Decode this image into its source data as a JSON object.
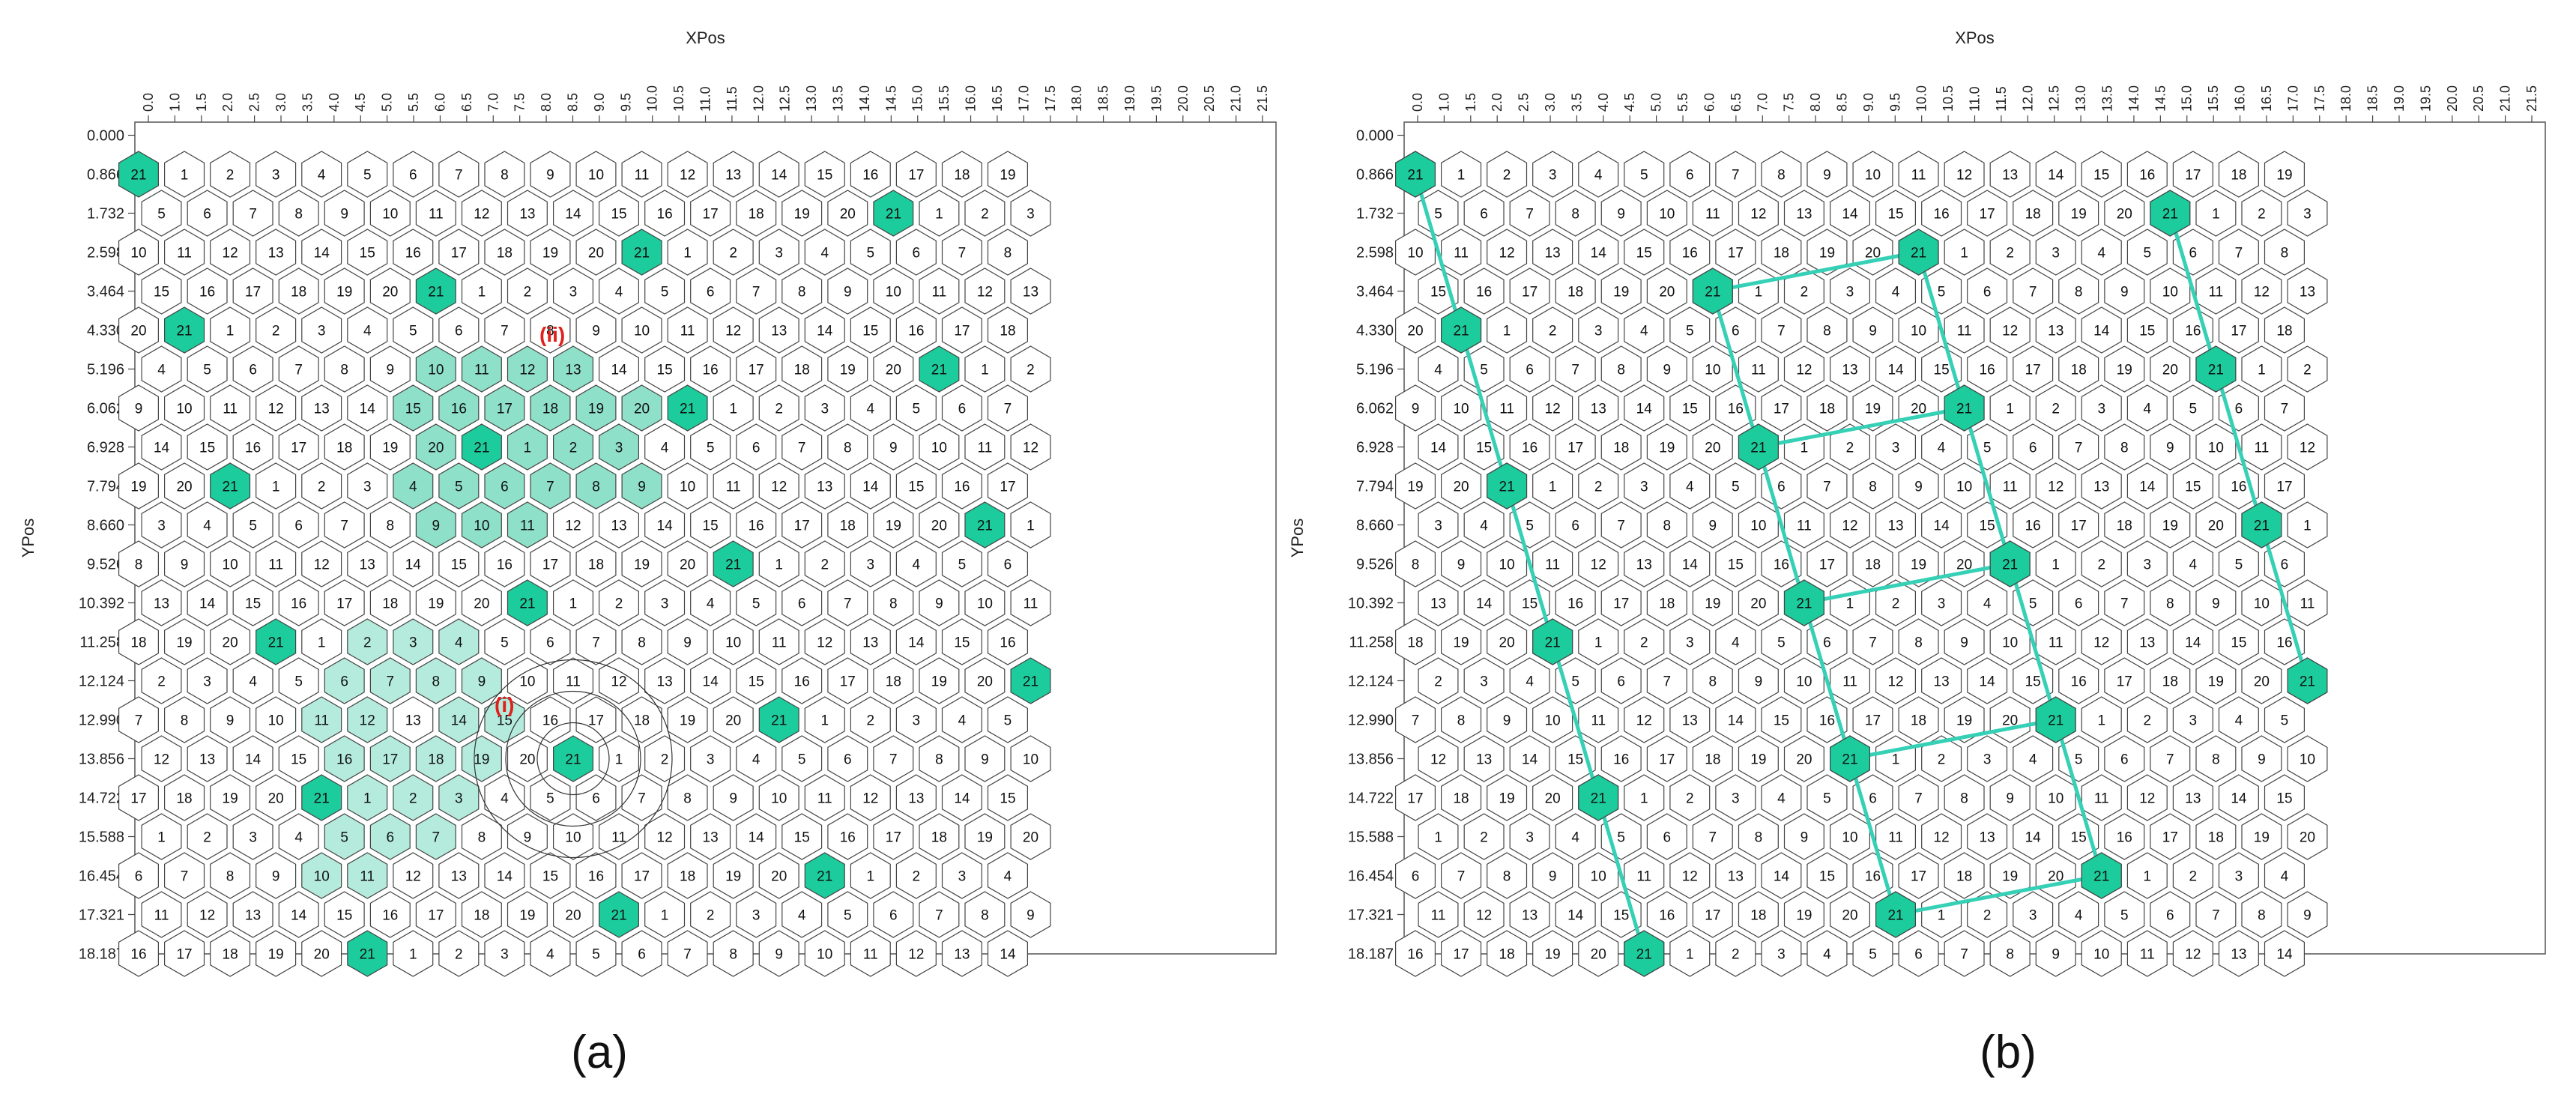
{
  "panels": [
    {
      "id": "a",
      "caption": "(a)",
      "x_axis_label": "XPos",
      "y_axis_label": "YPos",
      "annotations": [
        "(i)",
        "(ii)"
      ]
    },
    {
      "id": "b",
      "caption": "(b)",
      "x_axis_label": "XPos",
      "y_axis_label": "YPos",
      "annotations": []
    }
  ],
  "x_ticks": [
    "0.0",
    "1.0",
    "1.5",
    "2.0",
    "2.5",
    "3.0",
    "3.5",
    "4.0",
    "4.5",
    "5.0",
    "5.5",
    "6.0",
    "6.5",
    "7.0",
    "7.5",
    "8.0",
    "8.5",
    "9.0",
    "9.5",
    "10.0",
    "10.5",
    "11.0",
    "11.5",
    "12.0",
    "12.5",
    "13.0",
    "13.5",
    "14.0",
    "14.5",
    "15.0",
    "15.5",
    "16.0",
    "16.5",
    "17.0",
    "17.5",
    "18.0",
    "18.5",
    "19.0",
    "19.5",
    "20.0",
    "20.5",
    "21.0",
    "21.5"
  ],
  "y_ticks": [
    "0.000",
    "0.866",
    "1.732",
    "2.598",
    "3.464",
    "4.330",
    "5.196",
    "6.062",
    "6.928",
    "7.794",
    "8.660",
    "9.526",
    "10.392",
    "11.258",
    "12.124",
    "12.990",
    "13.856",
    "14.722",
    "15.588",
    "16.454",
    "17.321",
    "18.187"
  ],
  "grid": {
    "rows": 21,
    "columns": 20,
    "max_label": 21
  },
  "colors": {
    "highlight_cell": "#1ccc9c",
    "neighborhood_fill": "#b5ebdc",
    "neighborhood_inner_fill": "#8fe0c8",
    "link_line": "#35d0b6",
    "annotation": "#e0201b",
    "cell_stroke": "#444444"
  }
}
